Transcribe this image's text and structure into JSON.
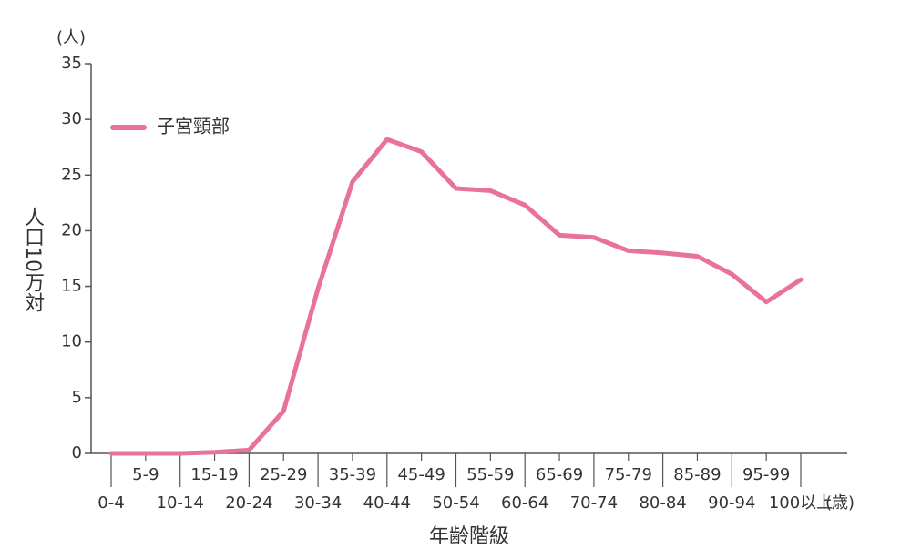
{
  "chart_data": {
    "type": "line",
    "y_unit": "(人)",
    "x_unit": "(歳)",
    "ylabel": "人口10万対",
    "xlabel": "年齢階級",
    "categories": [
      "0-4",
      "5-9",
      "10-14",
      "15-19",
      "20-24",
      "25-29",
      "30-34",
      "35-39",
      "40-44",
      "45-49",
      "50-54",
      "55-59",
      "60-64",
      "65-69",
      "70-74",
      "75-79",
      "80-84",
      "85-89",
      "90-94",
      "95-99",
      "100以上"
    ],
    "series": [
      {
        "name": "子宮頸部",
        "color": "#e8729a",
        "values": [
          0,
          0,
          0,
          0.1,
          0.3,
          3.8,
          14.8,
          24.4,
          28.2,
          27.1,
          23.8,
          23.6,
          22.3,
          19.6,
          19.4,
          18.2,
          18.0,
          17.7,
          16.1,
          13.6,
          15.6
        ]
      }
    ],
    "ylim": [
      0,
      35
    ],
    "yticks": [
      0,
      5,
      10,
      15,
      20,
      25,
      30,
      35
    ],
    "legend": "upper left"
  }
}
